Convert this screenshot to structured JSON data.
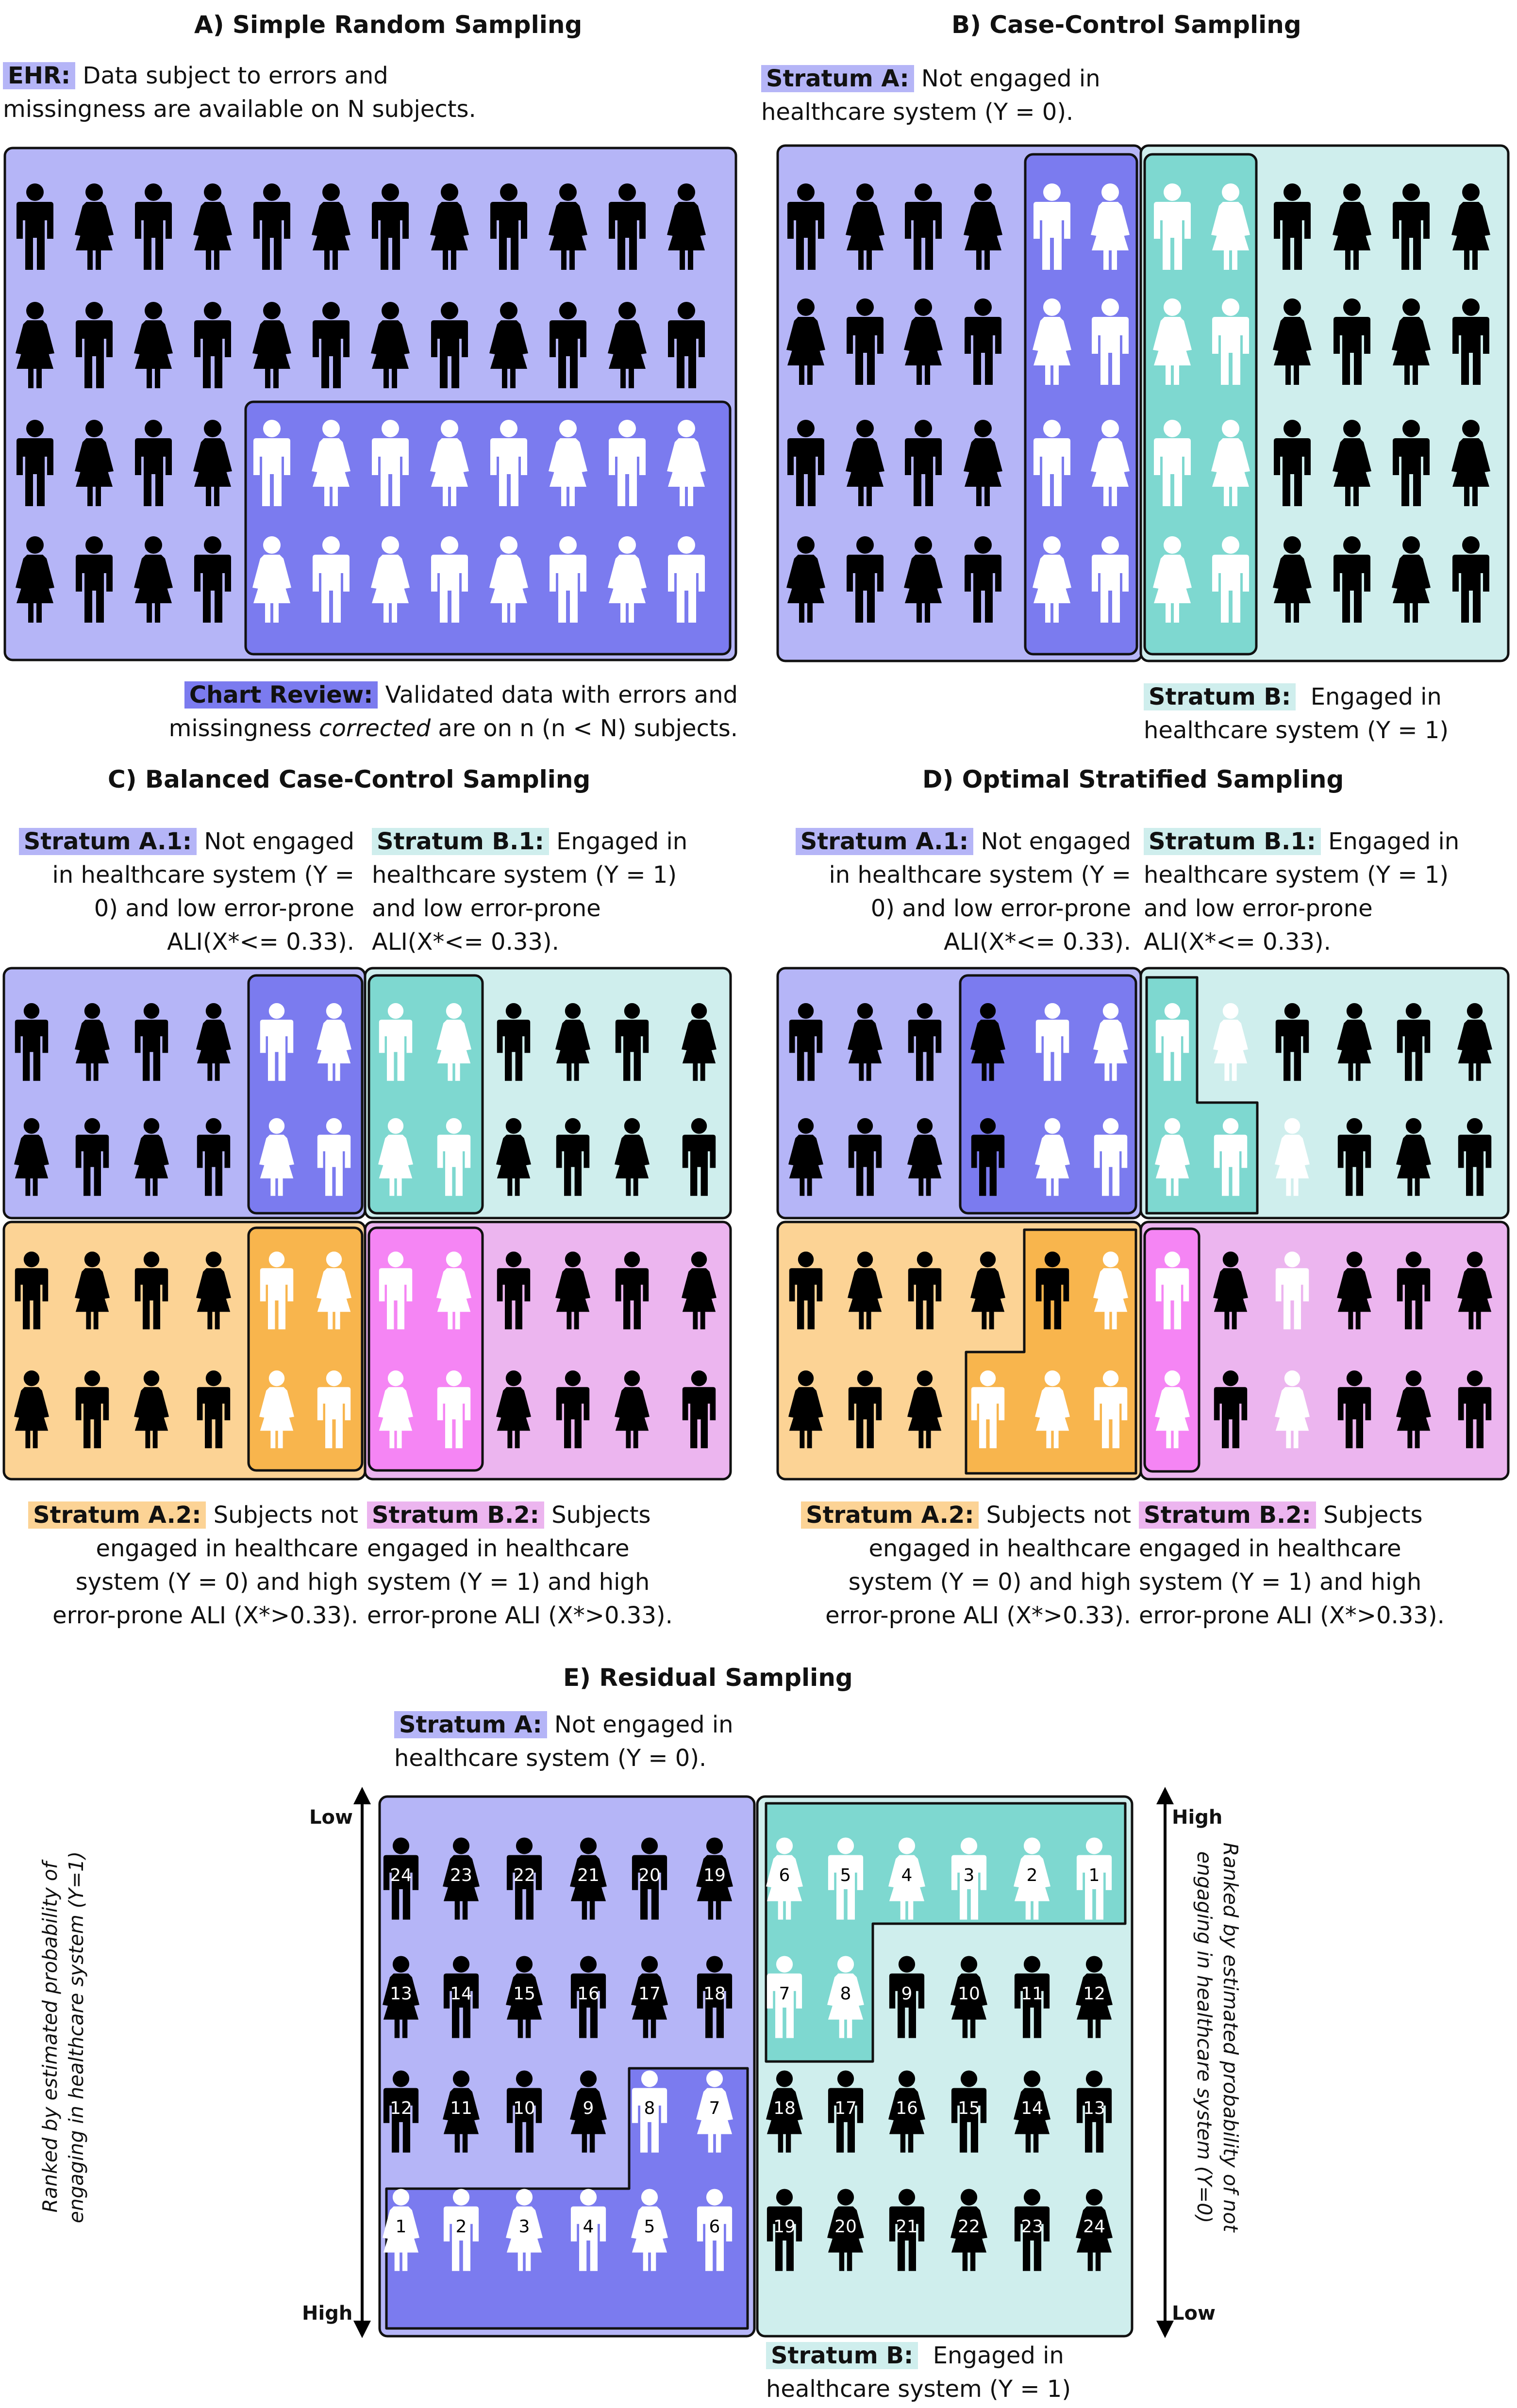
{
  "colors": {
    "lavender": "#b5b5f7",
    "purple_selected": "#7b7bef",
    "teal": "#cfeeed",
    "teal_selected": "#7ed8d0",
    "orange": "#fcd395",
    "orange_selected": "#f8b54d",
    "pink": "#ecb5ef",
    "magenta_selected": "#f585f4",
    "figure_black": "#000000",
    "figure_white": "#ffffff"
  },
  "panelA": {
    "title": "A) Simple Random Sampling",
    "ehr_tag": "EHR:",
    "ehr_line1": " Data subject to errors and",
    "ehr_line2": "missingness are available on N subjects.",
    "chart_tag": "Chart Review:",
    "chart_line1": " Validated data with errors and",
    "chart_line2_pre": "missingness ",
    "chart_line2_em": "corrected",
    "chart_line2_post": " are on n (n < N) subjects."
  },
  "panelB": {
    "title": "B) Case-Control Sampling",
    "a_tag": "Stratum A:",
    "a_line1": " Not engaged in",
    "a_line2": "healthcare system (Y = 0).",
    "b_tag": "Stratum B:",
    "b_line1": "  Engaged in",
    "b_line2": "healthcare system (Y = 1)"
  },
  "panelC": {
    "title": "C) Balanced Case-Control Sampling",
    "a1_tag": "Stratum A.1:",
    "a1_line1": " Not engaged",
    "a1_line2": "in healthcare system (Y =",
    "a1_line3": "0) and low error-prone",
    "a1_line4": "ALI(X*<= 0.33).",
    "b1_tag": "Stratum B.1:",
    "b1_line1": " Engaged in",
    "b1_line2": "healthcare system (Y = 1)",
    "b1_line3": "and low error-prone",
    "b1_line4": "ALI(X*<= 0.33).",
    "a2_tag": "Stratum A.2:",
    "a2_line1": " Subjects not",
    "a2_line2": "engaged in healthcare",
    "a2_line3": "system (Y = 0) and high",
    "a2_line4": "error-prone ALI (X*>0.33).",
    "b2_tag": "Stratum B.2:",
    "b2_line1": " Subjects",
    "b2_line2": "engaged in healthcare",
    "b2_line3": "system (Y = 1) and high",
    "b2_line4": "error-prone ALI (X*>0.33)."
  },
  "panelD": {
    "title": "D) Optimal Stratified Sampling",
    "a1_tag": "Stratum A.1:",
    "a1_line1": " Not engaged",
    "a1_line2": "in healthcare system (Y =",
    "a1_line3": "0) and low error-prone",
    "a1_line4": "ALI(X*<= 0.33).",
    "b1_tag": "Stratum B.1:",
    "b1_line1": " Engaged in",
    "b1_line2": "healthcare system (Y = 1)",
    "b1_line3": "and low error-prone",
    "b1_line4": "ALI(X*<= 0.33).",
    "a2_tag": "Stratum A.2:",
    "a2_line1": " Subjects not",
    "a2_line2": "engaged in healthcare",
    "a2_line3": "system (Y = 0) and high",
    "a2_line4": "error-prone ALI (X*>0.33).",
    "b2_tag": "Stratum B.2:",
    "b2_line1": " Subjects",
    "b2_line2": "engaged in healthcare",
    "b2_line3": "system (Y = 1) and high",
    "b2_line4": "error-prone ALI (X*>0.33)."
  },
  "panelE": {
    "title": "E) Residual Sampling",
    "a_tag": "Stratum A:",
    "a_line1": " Not engaged in",
    "a_line2": "healthcare system (Y = 0).",
    "b_tag": "Stratum B:",
    "b_line1": "  Engaged in",
    "b_line2": "healthcare system (Y = 1)",
    "left_axis_line1": "Ranked by estimated probability of",
    "left_axis_line2": "engaging in healthcare system (Y=1)",
    "left_top": "Low",
    "left_bottom": "High",
    "right_axis_line1": "Ranked by estimated probability of not",
    "right_axis_line2": "engaging in healthcare system (Y=0)",
    "right_top": "High",
    "right_bottom": "Low",
    "left_rows": [
      [
        "24",
        "23",
        "22",
        "21",
        "20",
        "19"
      ],
      [
        "13",
        "14",
        "15",
        "16",
        "17",
        "18"
      ],
      [
        "12",
        "11",
        "10",
        "9",
        "8",
        "7"
      ],
      [
        "1",
        "2",
        "3",
        "4",
        "5",
        "6"
      ]
    ],
    "right_rows": [
      [
        "6",
        "5",
        "4",
        "3",
        "2",
        "1"
      ],
      [
        "7",
        "8",
        "9",
        "10",
        "11",
        "12"
      ],
      [
        "18",
        "17",
        "16",
        "15",
        "14",
        "13"
      ],
      [
        "19",
        "20",
        "21",
        "22",
        "23",
        "24"
      ]
    ]
  }
}
